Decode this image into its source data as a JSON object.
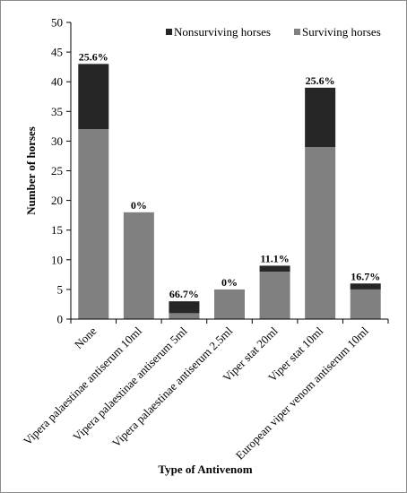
{
  "chart_data": {
    "type": "bar",
    "stacked": true,
    "xlabel": "Type of Antivenom",
    "ylabel": "Number of horses",
    "ylim": [
      0,
      50
    ],
    "yticks": [
      0,
      5,
      10,
      15,
      20,
      25,
      30,
      35,
      40,
      45,
      50
    ],
    "grid": false,
    "legend_position": "top-right",
    "categories": [
      "None",
      "Vipera palaestinae antiserum 10ml",
      "Vipera palaestinae antiserum 5ml",
      "Vipera palaestinae antiserum 2.5ml",
      "Viper stat 20ml",
      "Viper stat 10ml",
      "European viper venom antiserum 10ml"
    ],
    "series": [
      {
        "name": "Surviving horses",
        "color": "#808080",
        "values": [
          32,
          18,
          1,
          5,
          8,
          29,
          5
        ]
      },
      {
        "name": "Nonsurviving horses",
        "color": "#262626",
        "values": [
          11,
          0,
          2,
          0,
          1,
          10,
          1
        ]
      }
    ],
    "legend_order": [
      "Nonsurviving horses",
      "Surviving horses"
    ],
    "data_labels": [
      "25.6%",
      "0%",
      "66.7%",
      "0%",
      "11.1%",
      "25.6%",
      "16.7%"
    ]
  }
}
